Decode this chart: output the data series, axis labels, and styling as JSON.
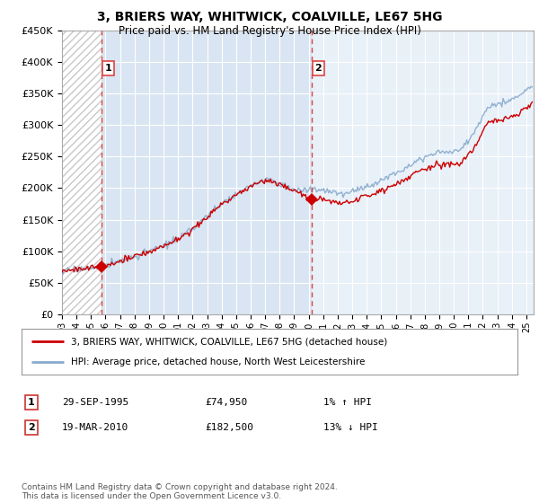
{
  "title": "3, BRIERS WAY, WHITWICK, COALVILLE, LE67 5HG",
  "subtitle": "Price paid vs. HM Land Registry's House Price Index (HPI)",
  "legend_line1": "3, BRIERS WAY, WHITWICK, COALVILLE, LE67 5HG (detached house)",
  "legend_line2": "HPI: Average price, detached house, North West Leicestershire",
  "annotation1_label": "1",
  "annotation1_date": "29-SEP-1995",
  "annotation1_price": "£74,950",
  "annotation1_hpi": "1% ↑ HPI",
  "annotation2_label": "2",
  "annotation2_date": "19-MAR-2010",
  "annotation2_price": "£182,500",
  "annotation2_hpi": "13% ↓ HPI",
  "footer": "Contains HM Land Registry data © Crown copyright and database right 2024.\nThis data is licensed under the Open Government Licence v3.0.",
  "sale1_x": 1995.75,
  "sale1_y": 74950,
  "sale2_x": 2010.22,
  "sale2_y": 182500,
  "ylim": [
    0,
    450000
  ],
  "xlim_left": 1993.0,
  "xlim_right": 2025.5,
  "yticks": [
    0,
    50000,
    100000,
    150000,
    200000,
    250000,
    300000,
    350000,
    400000,
    450000
  ],
  "ytick_labels": [
    "£0",
    "£50K",
    "£100K",
    "£150K",
    "£200K",
    "£250K",
    "£300K",
    "£350K",
    "£400K",
    "£450K"
  ],
  "xticks": [
    1993,
    1994,
    1995,
    1996,
    1997,
    1998,
    1999,
    2000,
    2001,
    2002,
    2003,
    2004,
    2005,
    2006,
    2007,
    2008,
    2009,
    2010,
    2011,
    2012,
    2013,
    2014,
    2015,
    2016,
    2017,
    2018,
    2019,
    2020,
    2021,
    2022,
    2023,
    2024,
    2025
  ],
  "red_color": "#CC0000",
  "blue_color": "#88AACC",
  "plot_bg_color": "#E8F0F8",
  "hatch_color": "#C8C8C8",
  "grid_color": "#FFFFFF",
  "sale_marker_color": "#CC0000",
  "dashed_line_color": "#DD4444",
  "box1_color": "#DD4444",
  "box2_color": "#DD4444"
}
